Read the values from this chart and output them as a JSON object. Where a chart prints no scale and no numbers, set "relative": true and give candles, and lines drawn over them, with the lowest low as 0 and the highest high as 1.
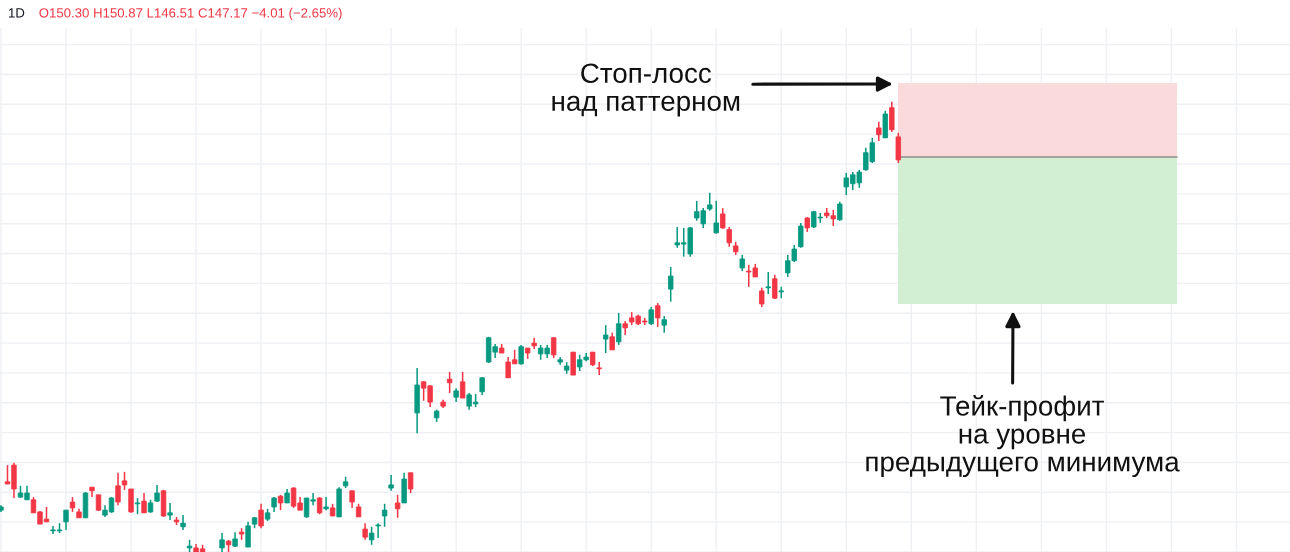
{
  "chart_data": {
    "type": "candlestick",
    "relative": true,
    "grid": true,
    "categories": [
      null,
      null,
      null,
      null,
      null,
      null,
      null,
      null,
      null,
      null,
      null,
      null,
      null,
      null,
      null,
      null,
      null,
      null,
      null,
      null,
      null,
      null,
      null,
      null,
      null,
      null,
      null,
      null,
      null,
      null,
      null,
      null,
      null,
      null,
      null,
      null,
      null,
      null,
      null,
      null,
      null,
      null,
      null,
      null,
      null,
      null,
      null,
      null,
      null,
      null,
      null,
      null,
      null,
      null,
      null,
      null,
      null,
      null,
      null,
      null,
      null,
      null,
      null,
      null,
      null,
      null,
      null,
      null,
      null,
      null,
      null,
      null,
      null,
      null,
      null,
      null,
      null,
      null,
      null,
      null,
      null,
      null,
      null,
      null,
      null,
      null,
      null,
      null,
      null,
      null,
      null,
      null,
      null,
      null,
      null,
      null,
      null,
      null,
      null,
      null,
      null,
      null,
      null,
      null,
      null,
      null,
      null,
      null,
      null,
      null,
      null,
      null,
      null,
      null,
      null,
      null,
      null,
      null,
      null,
      null,
      null,
      null,
      null,
      null,
      null,
      null,
      null,
      null,
      null,
      null,
      null,
      null,
      null,
      null,
      null,
      null,
      null,
      null,
      null
    ],
    "ohlc": [
      [
        0.093,
        0.104,
        0.089,
        0.1
      ],
      [
        0.156,
        0.193,
        0.151,
        0.151
      ],
      [
        0.193,
        0.198,
        0.12,
        0.14
      ],
      [
        0.122,
        0.147,
        0.12,
        0.131
      ],
      [
        0.116,
        0.147,
        0.116,
        0.131
      ],
      [
        0.116,
        0.122,
        0.087,
        0.087
      ],
      [
        0.089,
        0.091,
        0.062,
        0.062
      ],
      [
        0.073,
        0.1,
        0.067,
        0.067
      ],
      [
        0.047,
        0.058,
        0.04,
        0.049
      ],
      [
        0.047,
        0.064,
        0.042,
        0.049
      ],
      [
        0.067,
        0.093,
        0.049,
        0.093
      ],
      [
        0.111,
        0.122,
        0.089,
        0.098
      ],
      [
        0.089,
        0.096,
        0.076,
        0.076
      ],
      [
        0.076,
        0.133,
        0.076,
        0.131
      ],
      [
        0.144,
        0.144,
        0.122,
        0.136
      ],
      [
        0.127,
        0.127,
        0.091,
        0.093
      ],
      [
        0.082,
        0.104,
        0.078,
        0.093
      ],
      [
        0.089,
        0.122,
        0.087,
        0.12
      ],
      [
        0.147,
        0.176,
        0.104,
        0.111
      ],
      [
        0.158,
        0.178,
        0.138,
        0.149
      ],
      [
        0.14,
        0.14,
        0.087,
        0.089
      ],
      [
        0.107,
        0.12,
        0.084,
        0.109
      ],
      [
        0.113,
        0.131,
        0.087,
        0.087
      ],
      [
        0.089,
        0.116,
        0.087,
        0.109
      ],
      [
        0.113,
        0.149,
        0.111,
        0.131
      ],
      [
        0.136,
        0.138,
        0.078,
        0.08
      ],
      [
        0.082,
        0.109,
        0.071,
        0.087
      ],
      [
        0.071,
        0.078,
        0.06,
        0.067
      ],
      [
        0.056,
        0.082,
        0.049,
        0.064
      ],
      [
        0.009,
        0.027,
        0.0,
        0.013
      ],
      [
        0.009,
        0.018,
        0.0,
        0.0
      ],
      [
        0.007,
        0.016,
        0.0,
        0.0
      ],
      null,
      null,
      [
        0.009,
        0.042,
        0.0,
        0.027
      ],
      [
        0.024,
        0.027,
        0.0,
        0.016
      ],
      [
        0.013,
        0.044,
        0.011,
        0.029
      ],
      [
        0.044,
        0.053,
        0.027,
        0.04
      ],
      [
        0.011,
        0.067,
        0.011,
        0.058
      ],
      [
        0.062,
        0.078,
        0.053,
        0.076
      ],
      [
        0.093,
        0.107,
        0.053,
        0.058
      ],
      [
        0.073,
        0.096,
        0.069,
        0.087
      ],
      [
        0.1,
        0.122,
        0.089,
        0.12
      ],
      [
        0.124,
        0.127,
        0.093,
        0.109
      ],
      [
        0.109,
        0.14,
        0.109,
        0.131
      ],
      [
        0.142,
        0.144,
        0.098,
        0.102
      ],
      [
        0.109,
        0.122,
        0.093,
        0.093
      ],
      [
        0.078,
        0.12,
        0.076,
        0.12
      ],
      [
        0.113,
        0.131,
        0.104,
        0.116
      ],
      [
        0.12,
        0.122,
        0.084,
        0.087
      ],
      [
        0.096,
        0.122,
        0.093,
        0.1
      ],
      [
        0.098,
        0.107,
        0.08,
        0.08
      ],
      [
        0.078,
        0.144,
        0.078,
        0.14
      ],
      [
        0.147,
        0.167,
        0.142,
        0.156
      ],
      [
        0.136,
        0.136,
        0.098,
        0.111
      ],
      [
        0.1,
        0.107,
        0.078,
        0.078
      ],
      [
        0.051,
        0.064,
        0.027,
        0.033
      ],
      [
        0.027,
        0.056,
        0.016,
        0.042
      ],
      [
        0.058,
        0.064,
        0.031,
        0.06
      ],
      [
        0.08,
        0.107,
        0.056,
        0.093
      ],
      [
        0.142,
        0.171,
        0.136,
        0.149
      ],
      [
        0.109,
        0.127,
        0.076,
        0.096
      ],
      [
        0.109,
        0.176,
        0.109,
        0.162
      ],
      [
        0.176,
        0.176,
        0.131,
        0.14
      ],
      [
        0.309,
        0.409,
        0.264,
        0.371
      ],
      [
        0.378,
        0.38,
        0.336,
        0.364
      ],
      [
        0.369,
        0.371,
        0.322,
        0.333
      ],
      [
        0.298,
        0.316,
        0.289,
        0.313
      ],
      [
        0.333,
        0.338,
        0.32,
        0.324
      ],
      [
        0.384,
        0.4,
        0.353,
        0.376
      ],
      [
        0.344,
        0.364,
        0.333,
        0.358
      ],
      [
        0.378,
        0.4,
        0.342,
        0.342
      ],
      [
        0.324,
        0.353,
        0.316,
        0.349
      ],
      [
        0.329,
        0.351,
        0.322,
        0.333
      ],
      [
        0.356,
        0.389,
        0.349,
        0.387
      ],
      [
        0.422,
        0.478,
        0.42,
        0.476
      ],
      [
        0.444,
        0.462,
        0.431,
        0.456
      ],
      [
        0.453,
        0.462,
        0.442,
        0.442
      ],
      [
        0.422,
        0.433,
        0.387,
        0.387
      ],
      [
        0.427,
        0.449,
        0.418,
        0.418
      ],
      [
        0.418,
        0.46,
        0.416,
        0.456
      ],
      [
        0.453,
        0.453,
        0.429,
        0.442
      ],
      [
        0.464,
        0.476,
        0.451,
        0.458
      ],
      [
        0.44,
        0.46,
        0.427,
        0.453
      ],
      [
        0.44,
        0.46,
        0.431,
        0.453
      ],
      [
        0.476,
        0.476,
        0.431,
        0.438
      ],
      [
        0.422,
        0.433,
        0.416,
        0.427
      ],
      [
        0.404,
        0.422,
        0.396,
        0.413
      ],
      [
        0.444,
        0.444,
        0.393,
        0.393
      ],
      [
        0.411,
        0.438,
        0.402,
        0.427
      ],
      [
        0.427,
        0.442,
        0.424,
        0.433
      ],
      [
        0.444,
        0.444,
        0.413,
        0.416
      ],
      [
        0.409,
        0.422,
        0.393,
        0.407
      ],
      [
        0.473,
        0.504,
        0.442,
        0.482
      ],
      [
        0.478,
        0.487,
        0.449,
        0.449
      ],
      [
        0.467,
        0.531,
        0.46,
        0.507
      ],
      [
        0.507,
        0.513,
        0.482,
        0.498
      ],
      [
        0.52,
        0.533,
        0.504,
        0.511
      ],
      [
        0.524,
        0.527,
        0.504,
        0.507
      ],
      [
        0.513,
        0.52,
        0.504,
        0.511
      ],
      [
        0.507,
        0.544,
        0.504,
        0.538
      ],
      [
        0.547,
        0.553,
        0.5,
        0.52
      ],
      [
        0.504,
        0.524,
        0.487,
        0.516
      ],
      [
        0.584,
        0.633,
        0.556,
        0.613
      ],
      [
        0.682,
        0.722,
        0.676,
        0.687
      ],
      [
        0.684,
        0.72,
        0.656,
        0.687
      ],
      [
        0.662,
        0.722,
        0.656,
        0.72
      ],
      [
        0.742,
        0.78,
        0.736,
        0.756
      ],
      [
        0.729,
        0.764,
        0.72,
        0.758
      ],
      [
        0.762,
        0.798,
        0.758,
        0.771
      ],
      [
        0.709,
        0.78,
        0.707,
        0.731
      ],
      [
        0.751,
        0.764,
        0.718,
        0.72
      ],
      [
        0.716,
        0.722,
        0.678,
        0.687
      ],
      [
        0.68,
        0.689,
        0.66,
        0.667
      ],
      [
        0.631,
        0.66,
        0.624,
        0.651
      ],
      [
        0.624,
        0.638,
        0.589,
        0.622
      ],
      [
        0.631,
        0.64,
        0.611,
        0.611
      ],
      [
        0.58,
        0.587,
        0.544,
        0.551
      ],
      [
        0.587,
        0.622,
        0.573,
        0.589
      ],
      [
        0.607,
        0.616,
        0.562,
        0.564
      ],
      [
        0.578,
        0.589,
        0.564,
        0.58
      ],
      [
        0.62,
        0.66,
        0.611,
        0.647
      ],
      [
        0.647,
        0.682,
        0.644,
        0.673
      ],
      [
        0.678,
        0.731,
        0.676,
        0.724
      ],
      [
        0.742,
        0.744,
        0.711,
        0.72
      ],
      [
        0.722,
        0.758,
        0.72,
        0.756
      ],
      [
        0.742,
        0.753,
        0.731,
        0.744
      ],
      [
        0.753,
        0.764,
        0.742,
        0.747
      ],
      [
        0.747,
        0.76,
        0.724,
        0.74
      ],
      [
        0.738,
        0.778,
        0.736,
        0.773
      ],
      [
        0.811,
        0.842,
        0.793,
        0.831
      ],
      [
        0.818,
        0.844,
        0.804,
        0.838
      ],
      [
        0.82,
        0.849,
        0.809,
        0.844
      ],
      [
        0.849,
        0.898,
        0.847,
        0.887
      ],
      [
        0.867,
        0.92,
        0.864,
        0.909
      ],
      [
        0.942,
        0.956,
        0.913,
        0.927
      ],
      [
        0.92,
        0.98,
        0.92,
        0.973
      ],
      [
        0.987,
        1.0,
        0.933,
        0.938
      ],
      [
        0.922,
        0.931,
        0.864,
        0.871
      ]
    ],
    "colors": [
      "#089981",
      "#f23645",
      "#f23645",
      "#089981",
      "#089981",
      "#f23645",
      "#f23645",
      "#f23645",
      "#089981",
      "#089981",
      "#089981",
      "#f23645",
      "#f23645",
      "#089981",
      "#f23645",
      "#f23645",
      "#089981",
      "#089981",
      "#f23645",
      "#f23645",
      "#f23645",
      "#089981",
      "#f23645",
      "#089981",
      "#089981",
      "#f23645",
      "#089981",
      "#f23645",
      "#089981",
      "#089981",
      "#f23645",
      "#f23645",
      null,
      null,
      "#089981",
      "#f23645",
      "#089981",
      "#f23645",
      "#089981",
      "#089981",
      "#f23645",
      "#089981",
      "#089981",
      "#f23645",
      "#089981",
      "#f23645",
      "#f23645",
      "#089981",
      "#089981",
      "#f23645",
      "#089981",
      "#f23645",
      "#089981",
      "#089981",
      "#f23645",
      "#f23645",
      "#f23645",
      "#089981",
      "#089981",
      "#089981",
      "#089981",
      "#f23645",
      "#089981",
      "#f23645",
      "#089981",
      "#f23645",
      "#f23645",
      "#089981",
      "#f23645",
      "#f23645",
      "#089981",
      "#f23645",
      "#089981",
      "#089981",
      "#089981",
      "#089981",
      "#089981",
      "#f23645",
      "#f23645",
      "#f23645",
      "#089981",
      "#f23645",
      "#f23645",
      "#089981",
      "#089981",
      "#f23645",
      "#089981",
      "#089981",
      "#f23645",
      "#089981",
      "#089981",
      "#f23645",
      "#f23645",
      "#089981",
      "#f23645",
      "#089981",
      "#f23645",
      "#f23645",
      "#f23645",
      "#f23645",
      "#089981",
      "#f23645",
      "#089981",
      "#089981",
      "#089981",
      "#089981",
      "#089981",
      "#089981",
      "#089981",
      "#089981",
      "#089981",
      "#f23645",
      "#f23645",
      "#f23645",
      "#089981",
      "#f23645",
      "#f23645",
      "#f23645",
      "#089981",
      "#f23645",
      "#089981",
      "#089981",
      "#089981",
      "#089981",
      "#f23645",
      "#089981",
      "#089981",
      "#f23645",
      "#f23645",
      "#089981",
      "#089981",
      "#089981",
      "#089981",
      "#089981",
      "#089981",
      "#f23645",
      "#089981",
      "#f23645",
      "#f23645"
    ],
    "annotations": [
      "1D",
      "O150.30 H150.87 L146.51 C147.17 −4.01 (−2.65%)",
      "Стоп-лосс\nнад паттерном",
      "Тейк-профит\nна уровне\nпредыдущего минимума"
    ]
  }
}
